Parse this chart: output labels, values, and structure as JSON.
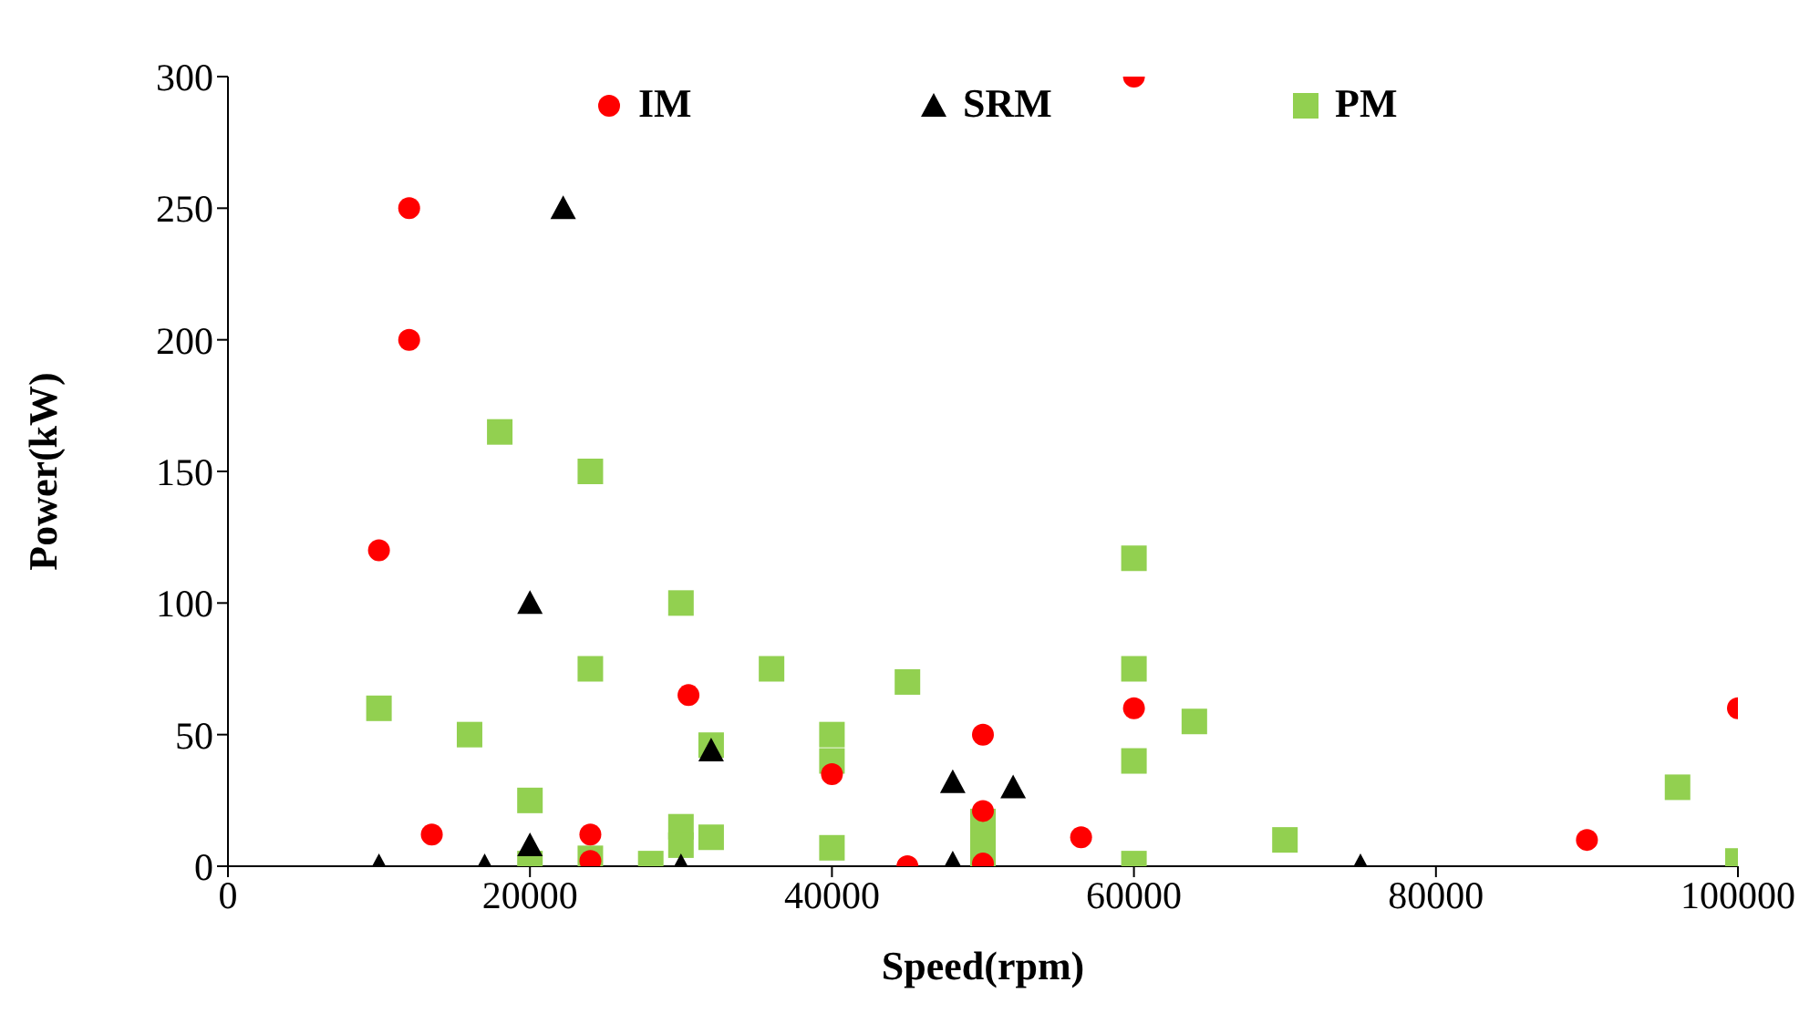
{
  "chart_data": {
    "type": "scatter",
    "xlabel": "Speed(rpm)",
    "ylabel": "Power(kW)",
    "xlim": [
      0,
      100000
    ],
    "xticks": [
      0,
      20000,
      40000,
      60000,
      80000,
      100000
    ],
    "ylim": [
      0,
      300
    ],
    "yticks": [
      0,
      50,
      100,
      150,
      200,
      250,
      300
    ],
    "grid": false,
    "legend": "top",
    "series": [
      {
        "name": "IM",
        "color": "#ff0000",
        "marker": "circle",
        "x": [
          12000,
          12000,
          10000,
          13500,
          24000,
          24000,
          30500,
          40000,
          45000,
          50000,
          50000,
          50000,
          56500,
          60000,
          60000,
          90000,
          100000
        ],
        "values": [
          250,
          200,
          120,
          12,
          12,
          2,
          65,
          35,
          0,
          50,
          21,
          1,
          11,
          60,
          300,
          10,
          60
        ]
      },
      {
        "name": "SRM",
        "color": "#000000",
        "marker": "triangle",
        "x": [
          22200,
          20000,
          10000,
          17000,
          20000,
          30000,
          32000,
          48000,
          52000,
          48000,
          75000
        ],
        "values": [
          250,
          100,
          0,
          0,
          8,
          0,
          44,
          32,
          30,
          1,
          0
        ]
      },
      {
        "name": "PM",
        "color": "#92d050",
        "marker": "square",
        "x": [
          18000,
          24000,
          30000,
          24000,
          10000,
          16000,
          32000,
          20000,
          20000,
          24000,
          28000,
          30000,
          30000,
          32000,
          36000,
          45000,
          40000,
          40000,
          40000,
          50000,
          50000,
          50000,
          60000,
          60000,
          60000,
          60000,
          64000,
          70000,
          96000,
          100000
        ],
        "values": [
          165,
          150,
          100,
          75,
          60,
          50,
          46,
          25,
          1,
          3,
          1,
          15,
          8,
          11,
          75,
          70,
          50,
          40,
          7,
          17,
          10,
          4,
          117,
          75,
          40,
          1,
          55,
          10,
          30,
          2
        ]
      }
    ]
  }
}
